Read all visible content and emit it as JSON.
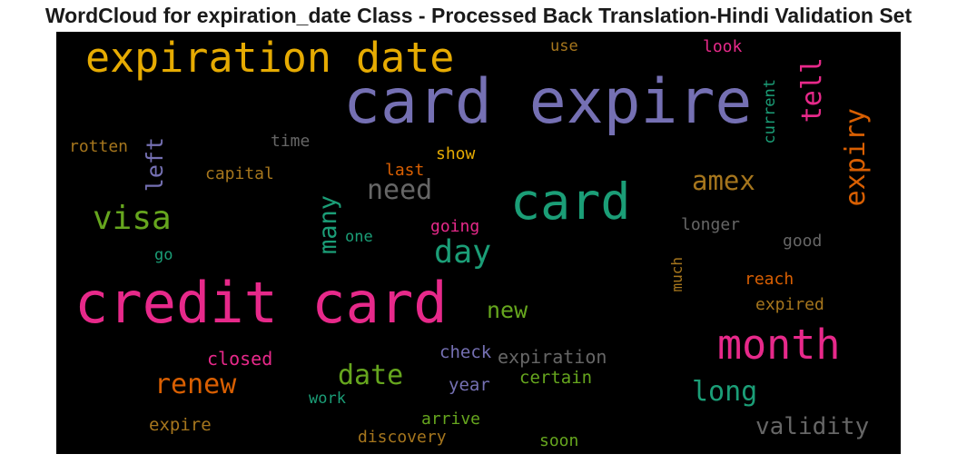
{
  "title": "WordCloud for expiration_date Class - Processed Back Translation-Hindi Validation Set",
  "words": [
    {
      "id": "card-expire",
      "text": "card expire",
      "color": "#7570b3",
      "size": 68
    },
    {
      "id": "credit-card",
      "text": "credit card",
      "color": "#e7298a",
      "size": 62
    },
    {
      "id": "expiration-date",
      "text": "expiration date",
      "color": "#e6ab02",
      "size": 45
    },
    {
      "id": "card",
      "text": "card",
      "color": "#1b9e77",
      "size": 55
    },
    {
      "id": "month",
      "text": "month",
      "color": "#e7298a",
      "size": 45
    },
    {
      "id": "visa",
      "text": "visa",
      "color": "#66a61e",
      "size": 36
    },
    {
      "id": "day",
      "text": "day",
      "color": "#1b9e77",
      "size": 35
    },
    {
      "id": "need",
      "text": "need",
      "color": "#666666",
      "size": 30
    },
    {
      "id": "amex",
      "text": "amex",
      "color": "#a6761d",
      "size": 29
    },
    {
      "id": "tell",
      "text": "tell",
      "color": "#e7298a",
      "size": 30
    },
    {
      "id": "expiry",
      "text": "expiry",
      "color": "#d95f02",
      "size": 30
    },
    {
      "id": "many",
      "text": "many",
      "color": "#1b9e77",
      "size": 27
    },
    {
      "id": "left",
      "text": "left",
      "color": "#7570b3",
      "size": 25
    },
    {
      "id": "renew",
      "text": "renew",
      "color": "#d95f02",
      "size": 30
    },
    {
      "id": "date",
      "text": "date",
      "color": "#66a61e",
      "size": 30
    },
    {
      "id": "long",
      "text": "long",
      "color": "#1b9e77",
      "size": 30
    },
    {
      "id": "validity",
      "text": "validity",
      "color": "#666666",
      "size": 26
    },
    {
      "id": "new",
      "text": "new",
      "color": "#66a61e",
      "size": 25
    },
    {
      "id": "current",
      "text": "current",
      "color": "#1b9e77",
      "size": 17
    },
    {
      "id": "use",
      "text": "use",
      "color": "#a6761d",
      "size": 17
    },
    {
      "id": "look",
      "text": "look",
      "color": "#e7298a",
      "size": 18
    },
    {
      "id": "rotten",
      "text": "rotten",
      "color": "#a6761d",
      "size": 18
    },
    {
      "id": "time",
      "text": "time",
      "color": "#666666",
      "size": 18
    },
    {
      "id": "show",
      "text": "show",
      "color": "#e6ab02",
      "size": 18
    },
    {
      "id": "last",
      "text": "last",
      "color": "#d95f02",
      "size": 18
    },
    {
      "id": "capital",
      "text": "capital",
      "color": "#a6761d",
      "size": 18
    },
    {
      "id": "going",
      "text": "going",
      "color": "#e7298a",
      "size": 18
    },
    {
      "id": "one",
      "text": "one",
      "color": "#1b9e77",
      "size": 17
    },
    {
      "id": "go",
      "text": "go",
      "color": "#1b9e77",
      "size": 17
    },
    {
      "id": "longer",
      "text": "longer",
      "color": "#666666",
      "size": 18
    },
    {
      "id": "much",
      "text": "much",
      "color": "#a6761d",
      "size": 16
    },
    {
      "id": "good",
      "text": "good",
      "color": "#666666",
      "size": 18
    },
    {
      "id": "reach",
      "text": "reach",
      "color": "#d95f02",
      "size": 18
    },
    {
      "id": "expired",
      "text": "expired",
      "color": "#a6761d",
      "size": 18
    },
    {
      "id": "closed",
      "text": "closed",
      "color": "#e7298a",
      "size": 20
    },
    {
      "id": "check",
      "text": "check",
      "color": "#7570b3",
      "size": 19
    },
    {
      "id": "expiration",
      "text": "expiration",
      "color": "#666666",
      "size": 20
    },
    {
      "id": "certain",
      "text": "certain",
      "color": "#66a61e",
      "size": 19
    },
    {
      "id": "work",
      "text": "work",
      "color": "#1b9e77",
      "size": 17
    },
    {
      "id": "year",
      "text": "year",
      "color": "#7570b3",
      "size": 19
    },
    {
      "id": "arrive",
      "text": "arrive",
      "color": "#66a61e",
      "size": 18
    },
    {
      "id": "expire",
      "text": "expire",
      "color": "#a6761d",
      "size": 19
    },
    {
      "id": "discovery",
      "text": "discovery",
      "color": "#a6761d",
      "size": 18
    },
    {
      "id": "soon",
      "text": "soon",
      "color": "#66a61e",
      "size": 18
    }
  ]
}
